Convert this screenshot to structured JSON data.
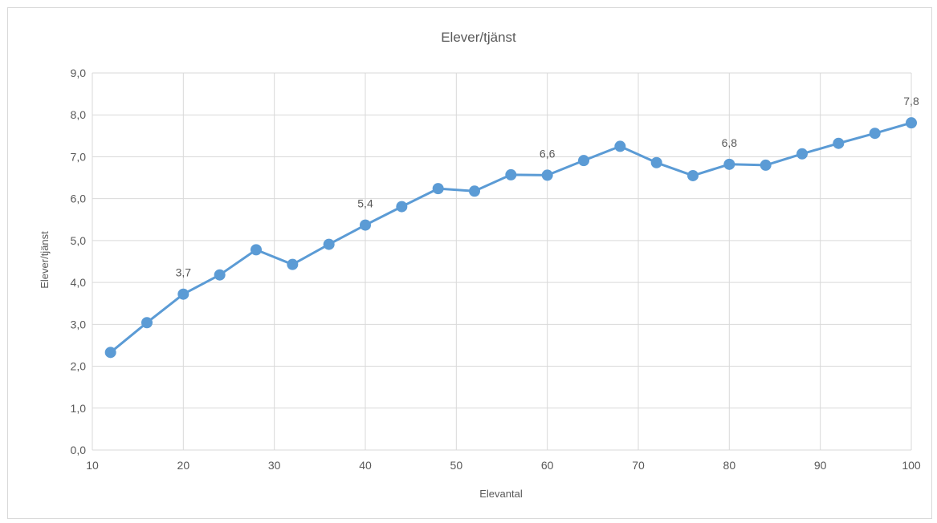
{
  "chart_data": {
    "type": "line",
    "title": "Elever/tjänst",
    "xlabel": "Elevantal",
    "ylabel": "Elever/tjänst",
    "xlim": [
      10,
      100
    ],
    "ylim": [
      0,
      9
    ],
    "x_ticks": [
      10,
      20,
      30,
      40,
      50,
      60,
      70,
      80,
      90,
      100
    ],
    "y_ticks": [
      0,
      1,
      2,
      3,
      4,
      5,
      6,
      7,
      8,
      9
    ],
    "x_tick_labels": [
      "10",
      "20",
      "30",
      "40",
      "50",
      "60",
      "70",
      "80",
      "90",
      "100"
    ],
    "y_tick_labels": [
      "0,0",
      "1,0",
      "2,0",
      "3,0",
      "4,0",
      "5,0",
      "6,0",
      "7,0",
      "8,0",
      "9,0"
    ],
    "grid": true,
    "legend": "none",
    "series": [
      {
        "color": "#5b9bd5",
        "x": [
          12,
          16,
          20,
          24,
          28,
          32,
          36,
          40,
          44,
          48,
          52,
          56,
          60,
          64,
          68,
          72,
          76,
          80,
          84,
          88,
          92,
          96,
          100
        ],
        "y": [
          2.33,
          3.04,
          3.72,
          4.18,
          4.78,
          4.43,
          4.91,
          5.37,
          5.81,
          6.24,
          6.18,
          6.57,
          6.56,
          6.91,
          7.25,
          6.86,
          6.55,
          6.82,
          6.8,
          7.07,
          7.32,
          7.56,
          7.81
        ]
      }
    ],
    "data_labels": [
      {
        "x": 20,
        "y": 3.72,
        "text": "3,7"
      },
      {
        "x": 40,
        "y": 5.37,
        "text": "5,4"
      },
      {
        "x": 60,
        "y": 6.56,
        "text": "6,6"
      },
      {
        "x": 80,
        "y": 6.82,
        "text": "6,8"
      },
      {
        "x": 100,
        "y": 7.81,
        "text": "7,8"
      }
    ]
  }
}
